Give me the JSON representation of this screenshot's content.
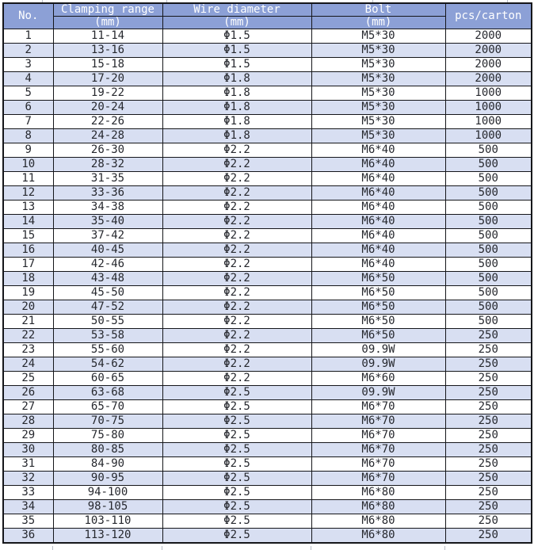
{
  "chart_data": {
    "type": "table",
    "columns": [
      {
        "label": "No.",
        "sub": ""
      },
      {
        "label": "Clamping range",
        "sub": "(mm)"
      },
      {
        "label": "Wire diameter",
        "sub": "(mm)"
      },
      {
        "label": "Bolt",
        "sub": "(mm)"
      },
      {
        "label": "pcs/carton",
        "sub": ""
      }
    ],
    "rows": [
      [
        "1",
        "11-14",
        "Φ1.5",
        "M5*30",
        "2000"
      ],
      [
        "2",
        "13-16",
        "Φ1.5",
        "M5*30",
        "2000"
      ],
      [
        "3",
        "15-18",
        "Φ1.5",
        "M5*30",
        "2000"
      ],
      [
        "4",
        "17-20",
        "Φ1.8",
        "M5*30",
        "2000"
      ],
      [
        "5",
        "19-22",
        "Φ1.8",
        "M5*30",
        "1000"
      ],
      [
        "6",
        "20-24",
        "Φ1.8",
        "M5*30",
        "1000"
      ],
      [
        "7",
        "22-26",
        "Φ1.8",
        "M5*30",
        "1000"
      ],
      [
        "8",
        "24-28",
        "Φ1.8",
        "M5*30",
        "1000"
      ],
      [
        "9",
        "26-30",
        "Φ2.2",
        "M6*40",
        "500"
      ],
      [
        "10",
        "28-32",
        "Φ2.2",
        "M6*40",
        "500"
      ],
      [
        "11",
        "31-35",
        "Φ2.2",
        "M6*40",
        "500"
      ],
      [
        "12",
        "33-36",
        "Φ2.2",
        "M6*40",
        "500"
      ],
      [
        "13",
        "34-38",
        "Φ2.2",
        "M6*40",
        "500"
      ],
      [
        "14",
        "35-40",
        "Φ2.2",
        "M6*40",
        "500"
      ],
      [
        "15",
        "37-42",
        "Φ2.2",
        "M6*40",
        "500"
      ],
      [
        "16",
        "40-45",
        "Φ2.2",
        "M6*40",
        "500"
      ],
      [
        "17",
        "42-46",
        "Φ2.2",
        "M6*40",
        "500"
      ],
      [
        "18",
        "43-48",
        "Φ2.2",
        "M6*50",
        "500"
      ],
      [
        "19",
        "45-50",
        "Φ2.2",
        "M6*50",
        "500"
      ],
      [
        "20",
        "47-52",
        "Φ2.2",
        "M6*50",
        "500"
      ],
      [
        "21",
        "50-55",
        "Φ2.2",
        "M6*50",
        "500"
      ],
      [
        "22",
        "53-58",
        "Φ2.2",
        "M6*50",
        "250"
      ],
      [
        "23",
        "55-60",
        "Φ2.2",
        "09.9W",
        "250"
      ],
      [
        "24",
        "54-62",
        "Φ2.2",
        "09.9W",
        "250"
      ],
      [
        "25",
        "60-65",
        "Φ2.2",
        "M6*60",
        "250"
      ],
      [
        "26",
        "63-68",
        "Φ2.5",
        "09.9W",
        "250"
      ],
      [
        "27",
        "65-70",
        "Φ2.5",
        "M6*70",
        "250"
      ],
      [
        "28",
        "70-75",
        "Φ2.5",
        "M6*70",
        "250"
      ],
      [
        "29",
        "75-80",
        "Φ2.5",
        "M6*70",
        "250"
      ],
      [
        "30",
        "80-85",
        "Φ2.5",
        "M6*70",
        "250"
      ],
      [
        "31",
        "84-90",
        "Φ2.5",
        "M6*70",
        "250"
      ],
      [
        "32",
        "90-95",
        "Φ2.5",
        "M6*70",
        "250"
      ],
      [
        "33",
        "94-100",
        "Φ2.5",
        "M6*80",
        "250"
      ],
      [
        "34",
        "98-105",
        "Φ2.5",
        "M6*80",
        "250"
      ],
      [
        "35",
        "103-110",
        "Φ2.5",
        "M6*80",
        "250"
      ],
      [
        "36",
        "113-120",
        "Φ2.5",
        "M6*80",
        "250"
      ]
    ],
    "title": "",
    "layout_hints": {
      "striping": "even rows light blue, odd rows white",
      "header_rows": 2,
      "grid": "on"
    }
  },
  "colors": {
    "header_bg": "#8CA0D6",
    "header_text": "#FFFFFF",
    "row_alt_bg": "#D8DFF2",
    "body_text": "#26282E",
    "border": "#15161A"
  }
}
